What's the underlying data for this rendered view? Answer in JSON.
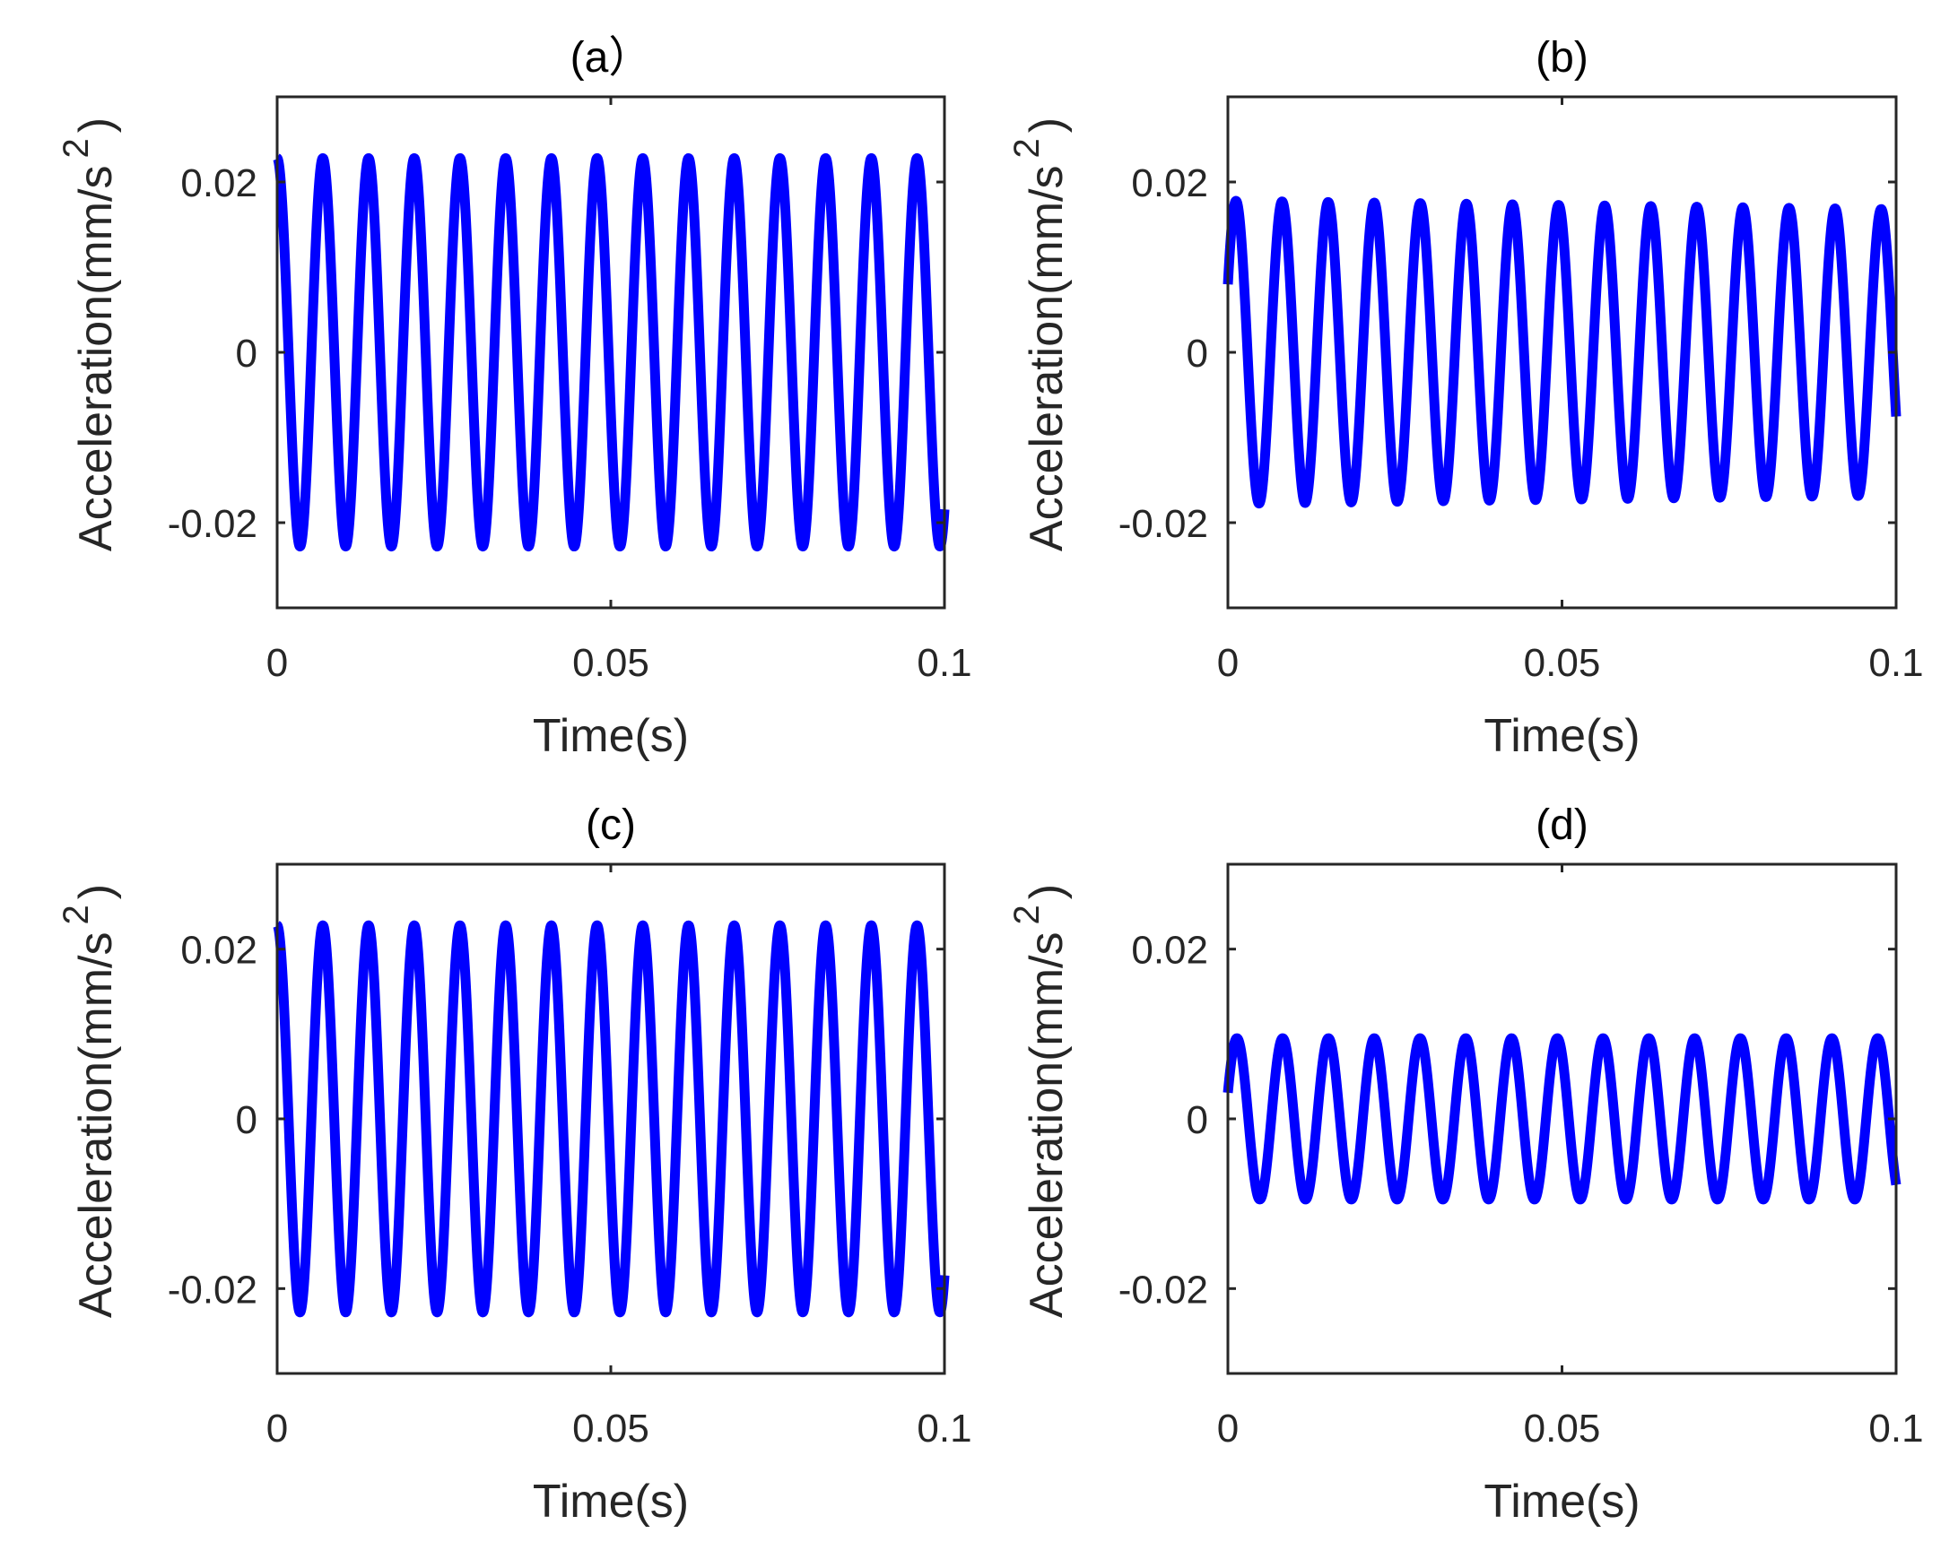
{
  "colors": {
    "line": "#0000ff",
    "axis": "#262626",
    "background": "#ffffff"
  },
  "chart_data": [
    {
      "type": "line",
      "title": "(a）",
      "xlabel": "Time(s)",
      "ylabel": "Acceleration(mm/s",
      "ylabel_superscript": "2",
      "ylabel_close": ")",
      "xlim": [
        0,
        0.1
      ],
      "ylim": [
        -0.03,
        0.03
      ],
      "xticks": [
        0,
        0.05,
        0.1
      ],
      "xtick_labels": [
        "0",
        "0.05",
        "0.1"
      ],
      "yticks": [
        -0.02,
        0,
        0.02
      ],
      "ytick_labels": [
        "-0.02",
        "0",
        "0.02"
      ],
      "series": [
        {
          "name": "acceleration",
          "form": "sine",
          "amplitude": 0.0228,
          "frequency_hz": 146,
          "phase_rad": 1.5708,
          "offset": 0,
          "x_range": [
            0,
            0.1
          ]
        }
      ]
    },
    {
      "type": "line",
      "title": "(b)",
      "xlabel": "Time(s)",
      "ylabel": "Acceleration(mm/s",
      "ylabel_superscript": "2",
      "ylabel_close": ")",
      "xlim": [
        0,
        0.1
      ],
      "ylim": [
        -0.03,
        0.03
      ],
      "xticks": [
        0,
        0.05,
        0.1
      ],
      "xtick_labels": [
        "0",
        "0.05",
        "0.1"
      ],
      "yticks": [
        -0.02,
        0,
        0.02
      ],
      "ytick_labels": [
        "-0.02",
        "0",
        "0.02"
      ],
      "series": [
        {
          "name": "acceleration",
          "form": "sine",
          "amplitude": 0.0178,
          "amplitude_end": 0.0168,
          "frequency_hz": 145,
          "phase_rad": 0.465,
          "offset": 0,
          "x_range": [
            0,
            0.1
          ]
        }
      ]
    },
    {
      "type": "line",
      "title": "(c)",
      "xlabel": "Time(s)",
      "ylabel": "Acceleration(mm/s",
      "ylabel_superscript": "2",
      "ylabel_close": ")",
      "xlim": [
        0,
        0.1
      ],
      "ylim": [
        -0.03,
        0.03
      ],
      "xticks": [
        0,
        0.05,
        0.1
      ],
      "xtick_labels": [
        "0",
        "0.05",
        "0.1"
      ],
      "yticks": [
        -0.02,
        0,
        0.02
      ],
      "ytick_labels": [
        "-0.02",
        "0",
        "0.02"
      ],
      "series": [
        {
          "name": "acceleration",
          "form": "sine",
          "amplitude": 0.0228,
          "frequency_hz": 146,
          "phase_rad": 1.5708,
          "offset": 0,
          "x_range": [
            0,
            0.1
          ]
        }
      ]
    },
    {
      "type": "line",
      "title": "(d)",
      "xlabel": "Time(s)",
      "ylabel": "Acceleration(mm/s",
      "ylabel_superscript": "2",
      "ylabel_close": ")",
      "xlim": [
        0,
        0.1
      ],
      "ylim": [
        -0.03,
        0.03
      ],
      "xticks": [
        0,
        0.05,
        0.1
      ],
      "xtick_labels": [
        "0",
        "0.05",
        "0.1"
      ],
      "yticks": [
        -0.02,
        0,
        0.02
      ],
      "ytick_labels": [
        "-0.02",
        "0",
        "0.02"
      ],
      "series": [
        {
          "name": "acceleration",
          "form": "sine",
          "amplitude": 0.0095,
          "frequency_hz": 146,
          "phase_rad": 0.33,
          "offset": 0,
          "x_range": [
            0,
            0.1
          ]
        }
      ]
    }
  ]
}
